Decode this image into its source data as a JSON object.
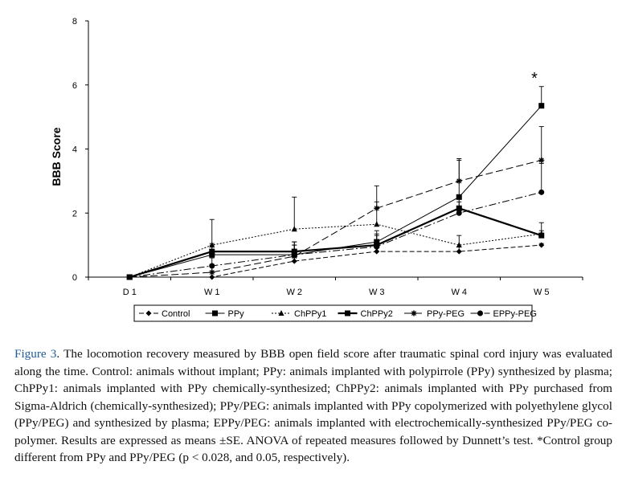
{
  "chart_data": {
    "type": "line",
    "categories": [
      "D 1",
      "W 1",
      "W 2",
      "W 3",
      "W 4",
      "W 5"
    ],
    "ylabel": "BBB Score",
    "xlabel": "",
    "ylim": [
      0,
      8
    ],
    "yticks": [
      "0",
      "2",
      "4",
      "6",
      "8"
    ],
    "grid": false,
    "legend_position": "bottom",
    "annotation": "*",
    "series": [
      {
        "name": "Control",
        "values": [
          0,
          0,
          0.5,
          0.8,
          0.8,
          1.0
        ],
        "errors": [
          0,
          0,
          0,
          0.35,
          0.15,
          0.05
        ],
        "marker": "diamond",
        "dash": "6 3",
        "width": 1
      },
      {
        "name": "PPy",
        "values": [
          0,
          0.7,
          0.7,
          1.1,
          2.5,
          5.35
        ],
        "errors": [
          0,
          0.3,
          0.3,
          0.35,
          1.2,
          0.6
        ],
        "marker": "square",
        "dash": "",
        "width": 1
      },
      {
        "name": "ChPPy1",
        "values": [
          0,
          1.0,
          1.5,
          1.65,
          1.0,
          1.35
        ],
        "errors": [
          0,
          0.8,
          1.0,
          0.7,
          0.3,
          0.35
        ],
        "marker": "triangle",
        "dash": "2 2",
        "width": 1
      },
      {
        "name": "ChPPy2",
        "values": [
          0,
          0.8,
          0.8,
          1.0,
          2.15,
          1.3
        ],
        "errors": [
          0,
          0.25,
          0.3,
          0.35,
          0.2,
          0.15
        ],
        "marker": "square",
        "dash": "",
        "width": 2.2
      },
      {
        "name": "PPy-PEG",
        "values": [
          0,
          0.15,
          0.65,
          2.15,
          3.0,
          3.65
        ],
        "errors": [
          0,
          0.25,
          0.45,
          0.7,
          0.65,
          1.05
        ],
        "marker": "asterisk",
        "dash": "9 4",
        "width": 1
      },
      {
        "name": "EPPy-PEG",
        "values": [
          0,
          0.35,
          0.7,
          0.95,
          2.0,
          2.65
        ],
        "errors": [
          0,
          0.25,
          0.3,
          0.35,
          0.5,
          0.9
        ],
        "marker": "circle",
        "dash": "9 3 2 3",
        "width": 1
      }
    ]
  },
  "caption": {
    "label": "Figure 3",
    "text": ". The locomotion recovery measured by BBB open field score after traumatic spinal cord injury was evaluated along the time. Control: animals without implant; PPy: animals implanted with polypirrole (PPy) synthesized by plasma; ChPPy1: animals implanted with PPy chemically-synthesized; ChPPy2: animals implanted with PPy purchased from Sigma-Aldrich (chemically-synthesized); PPy/PEG: animals implanted with PPy copolymerized with polyethylene glycol (PPy/PEG) and synthesized by plasma; EPPy/PEG: animals implanted with electrochemically-synthesized PPy/PEG co-polymer. Results are expressed as means ±SE. ANOVA of repeated measures followed by Dunnett’s test. *Control group different from PPy and PPy/PEG (p < 0.028, and 0.05, respectively)."
  }
}
